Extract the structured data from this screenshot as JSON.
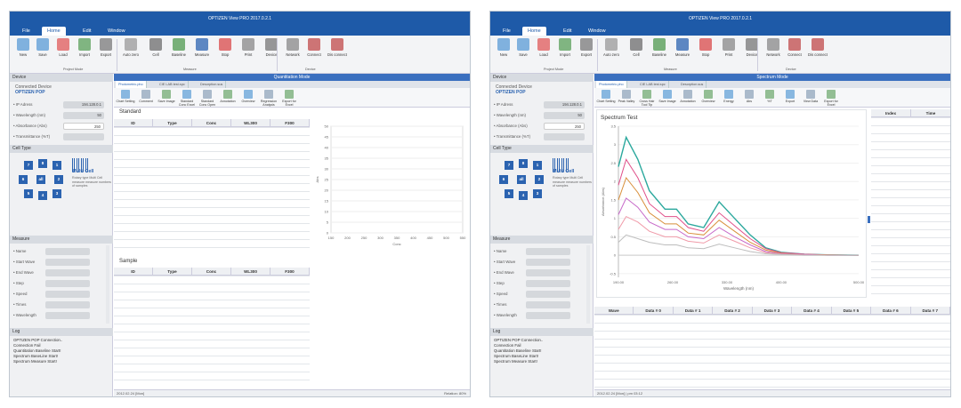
{
  "window": {
    "title": "OPTIZEN View PRO 2017.0.2.1"
  },
  "menu": [
    "File",
    "Home",
    "Edit",
    "Window"
  ],
  "ribbon": {
    "buttons": [
      "New",
      "Save",
      "Load",
      "Import",
      "Export",
      "Auto zero",
      "Cell",
      "Baseline",
      "Measure",
      "Stop",
      "Print",
      "Device",
      "Network",
      "Connect",
      "Dis connect"
    ],
    "groups": [
      "Project Mode",
      "Measure",
      "Device"
    ]
  },
  "device": {
    "header": "Device",
    "connected_label": "Connected Device",
    "device_name": "OPTIZEN POP",
    "ip_label": "• IP Adress",
    "ip_value": "194.128.0.1",
    "wavelength_label": "• Wavelength (nm)",
    "wavelength_value": "50",
    "absorbance_label": "• Absorbance (Abs)",
    "absorbance_value": "250",
    "transmittance_label": "• Transmittance (%T)"
  },
  "cell_type": {
    "header": "Cell Type",
    "cells": [
      "7",
      "8",
      "1",
      "6",
      "all",
      "2",
      "5",
      "4",
      "3"
    ],
    "title": "Multi Cell",
    "desc": "Rotary type Multi Cell measure measure numbers of samples"
  },
  "measure": {
    "header": "Measure",
    "items": [
      "• Name",
      "• Start Wave",
      "• End Wave",
      "• Step",
      "• Speed",
      "• Times",
      "• Wavelength"
    ]
  },
  "log": {
    "header": "Log",
    "lines": [
      "OPTIZEN POP Connection..",
      "Connection Fail",
      "Quantitation Baseline Start!",
      "Spectrum BaseLine Start!",
      "Spectrum Measure Start!"
    ]
  },
  "left_window": {
    "pane_title": "Quantitation Mode",
    "tabs": [
      "Photometric.pho",
      "CIE LAB test.spc",
      "Desorption.sus"
    ],
    "toolbar": [
      "Chart Setting",
      "Comment",
      "Save Image",
      "Standard Conc Excel",
      "Standard Conc Open",
      "Annotation",
      "Overview",
      "Regression Analysis",
      "Export for Excel"
    ],
    "standard_title": "Standard",
    "columns": [
      "ID",
      "Type",
      "Conc",
      "WL300",
      "F300"
    ],
    "sample_title": "Sample",
    "chart_y_label": "Abs",
    "chart_x_label": "Conc",
    "chart_y_ticks": [
      "50",
      "45",
      "40",
      "35",
      "30",
      "25",
      "20",
      "15",
      "10",
      "5",
      "0"
    ],
    "chart_x_ticks": [
      "150",
      "200",
      "250",
      "300",
      "350",
      "400",
      "450",
      "500",
      "550"
    ],
    "status_left": "2012.02.24 [Mon]",
    "status_right": "Relation: 80%"
  },
  "right_window": {
    "pane_title": "Spectrum Mode",
    "tabs": [
      "Photometric.pho",
      "CIE LAB test.spc",
      "Desorption.sus"
    ],
    "toolbar": [
      "Chart Setting",
      "Peak Valley",
      "Cross Hair Tool Tip",
      "Save Image",
      "Annotation",
      "Overview",
      "Energy",
      "Abs",
      "%T",
      "Export",
      "View Data",
      "Export for Excel"
    ],
    "right_columns": [
      "Index",
      "Time"
    ],
    "data_columns": [
      "Wave",
      "Data # 0",
      "Data # 1",
      "Data # 2",
      "Data # 3",
      "Data # 4",
      "Data # 5",
      "Data # 6",
      "Data # 7"
    ],
    "status_left": "2012.02.24 [Mon] | pm 03:12"
  },
  "chart_data": {
    "type": "line",
    "title": "Spectrum Test",
    "xlabel": "Wavelength (nm)",
    "ylabel": "Absorbance (Abs)",
    "xlim": [
      190,
      500
    ],
    "ylim": [
      -0.6,
      3.5
    ],
    "x_ticks": [
      "190.00",
      "260.00",
      "330.00",
      "400.00",
      "500.00"
    ],
    "y_ticks": [
      "3.5",
      "3",
      "2.5",
      "2",
      "1.5",
      "1",
      "0.5",
      "0",
      "-0.5"
    ],
    "x": [
      190,
      200,
      215,
      230,
      250,
      265,
      280,
      300,
      320,
      340,
      360,
      380,
      400,
      430,
      460,
      500
    ],
    "series": [
      {
        "color": "#2ba89d",
        "values": [
          2.4,
          3.2,
          2.6,
          1.75,
          1.25,
          1.25,
          0.85,
          0.75,
          1.45,
          1.0,
          0.55,
          0.2,
          0.08,
          0.03,
          0.01,
          0.0
        ]
      },
      {
        "color": "#e0508a",
        "values": [
          1.9,
          2.6,
          2.1,
          1.4,
          1.05,
          1.05,
          0.75,
          0.65,
          1.15,
          0.8,
          0.45,
          0.18,
          0.07,
          0.03,
          0.01,
          0.0
        ]
      },
      {
        "color": "#d88f3a",
        "values": [
          1.5,
          2.1,
          1.7,
          1.15,
          0.85,
          0.85,
          0.6,
          0.55,
          0.95,
          0.65,
          0.35,
          0.14,
          0.05,
          0.02,
          0.01,
          0.0
        ]
      },
      {
        "color": "#c76ac9",
        "values": [
          1.1,
          1.55,
          1.3,
          0.9,
          0.7,
          0.7,
          0.5,
          0.45,
          0.75,
          0.5,
          0.28,
          0.1,
          0.04,
          0.02,
          0.0,
          0.0
        ]
      },
      {
        "color": "#f09aa8",
        "values": [
          0.7,
          1.05,
          0.9,
          0.65,
          0.5,
          0.5,
          0.38,
          0.33,
          0.55,
          0.38,
          0.2,
          0.07,
          0.03,
          0.01,
          0.0,
          0.0
        ]
      },
      {
        "color": "#bdbdbd",
        "values": [
          0.35,
          0.55,
          0.45,
          0.35,
          0.28,
          0.28,
          0.2,
          0.18,
          0.3,
          0.2,
          0.1,
          0.04,
          0.02,
          0.0,
          0.0,
          0.0
        ]
      }
    ]
  }
}
